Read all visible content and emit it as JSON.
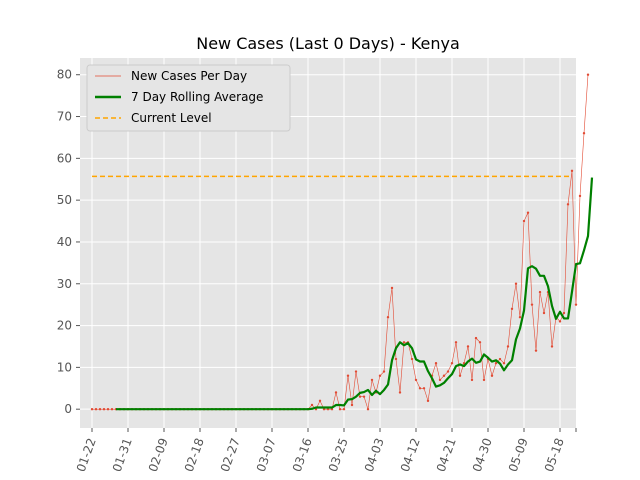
{
  "chart_data": {
    "type": "line",
    "title": "New Cases (Last 0 Days) - Kenya",
    "xlabel": "",
    "ylabel": "",
    "grid": true,
    "legend_position": "top-left",
    "x_ticks": [
      "01-22",
      "01-31",
      "02-09",
      "02-18",
      "02-27",
      "03-07",
      "03-16",
      "03-25",
      "04-03",
      "04-12",
      "04-21",
      "04-30",
      "05-09",
      "05-18"
    ],
    "y_ticks": [
      0,
      10,
      20,
      30,
      40,
      50,
      60,
      70,
      80
    ],
    "xlim": [
      "2020-01-19",
      "2020-05-22"
    ],
    "ylim": [
      -4.5,
      84
    ],
    "daily": {
      "name": "New Cases Per Day",
      "color": "#e24a33",
      "start_date": "2020-01-22",
      "values": [
        0,
        0,
        0,
        0,
        0,
        0,
        0,
        0,
        0,
        0,
        0,
        0,
        0,
        0,
        0,
        0,
        0,
        0,
        0,
        0,
        0,
        0,
        0,
        0,
        0,
        0,
        0,
        0,
        0,
        0,
        0,
        0,
        0,
        0,
        0,
        0,
        0,
        0,
        0,
        0,
        0,
        0,
        0,
        0,
        0,
        0,
        0,
        0,
        0,
        0,
        0,
        0,
        0,
        0,
        0,
        1,
        0,
        2,
        0,
        0,
        0,
        4,
        0,
        0,
        8,
        1,
        9,
        3,
        3,
        0,
        7,
        4,
        8,
        9,
        22,
        29,
        12,
        4,
        16,
        16,
        12,
        7,
        5,
        5,
        2,
        8,
        11,
        7,
        8,
        9,
        11,
        16,
        8,
        11,
        15,
        7,
        17,
        16,
        7,
        12,
        8,
        11,
        12,
        11,
        15,
        24,
        30,
        22,
        45,
        47,
        25,
        14,
        28,
        23,
        28,
        15,
        22,
        21,
        23,
        49,
        57,
        25,
        51,
        66,
        80
      ]
    },
    "rolling": {
      "name": "7 Day Rolling Average",
      "color": "#008000",
      "start_date": "2020-01-28",
      "values": [
        0,
        0,
        0,
        0,
        0,
        0,
        0,
        0,
        0,
        0,
        0,
        0,
        0,
        0,
        0,
        0,
        0,
        0,
        0,
        0,
        0,
        0,
        0,
        0,
        0,
        0,
        0,
        0,
        0,
        0,
        0,
        0,
        0,
        0,
        0,
        0,
        0,
        0,
        0,
        0,
        0,
        0,
        0,
        0,
        0,
        0,
        0,
        0,
        0,
        0.1,
        0.4,
        0.4,
        0.4,
        0.4,
        0.4,
        1,
        1,
        0.9,
        2.3,
        2.4,
        3,
        3.9,
        4.1,
        4.6,
        3.4,
        4.4,
        3.6,
        4.6,
        5.9,
        11.7,
        14.6,
        16,
        15.3,
        15.8,
        14.6,
        11.9,
        11.4,
        11.4,
        9.1,
        7.4,
        5.4,
        5.7,
        6.3,
        7.4,
        8.4,
        10.3,
        10.7,
        10.3,
        11.4,
        12.1,
        11.1,
        11.4,
        13.1,
        12.3,
        11.4,
        11.7,
        10.9,
        9.3,
        10.7,
        11.7,
        16.7,
        19.3,
        23.6,
        33.7,
        34.2,
        33.6,
        31.9,
        31.9,
        29.4,
        24.7,
        21.6,
        23.3,
        21.7,
        21.7,
        28.1,
        34.7,
        34.9,
        38,
        41.4,
        55.4
      ]
    },
    "level": {
      "name": "Current Level",
      "color": "#ffa500",
      "value": 55.7,
      "start_date": "2020-01-22",
      "end_date": "2020-05-21"
    }
  }
}
